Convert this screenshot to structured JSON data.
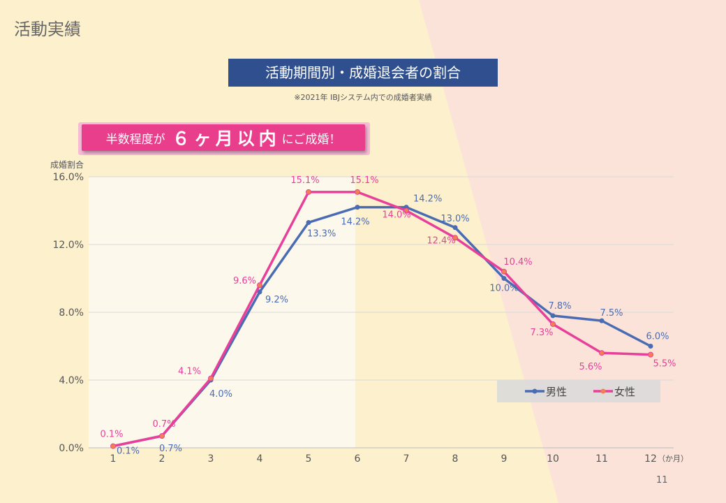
{
  "page": {
    "title": "活動実績",
    "page_number": "11",
    "colors": {
      "background_left": "#fdf0cd",
      "background_right": "#fbe3d9",
      "highlight": "#fdf8ec"
    }
  },
  "callout": {
    "text_before": "半数程度が",
    "text_emphasis": "６ヶ月以内",
    "text_after": "にご成婚！"
  },
  "chart_data": {
    "type": "line",
    "title": "活動期間別・成婚退会者の割合",
    "subtitle": "※2021年 IBJシステム内での成婚者実績",
    "ylabel": "成婚割合",
    "xunit": "（か月）",
    "categories": [
      "1",
      "2",
      "3",
      "4",
      "5",
      "6",
      "7",
      "8",
      "9",
      "10",
      "11",
      "12"
    ],
    "yticks": [
      "0.0%",
      "4.0%",
      "8.0%",
      "12.0%",
      "16.0%"
    ],
    "ylim": [
      0,
      16
    ],
    "highlight_range": [
      "1",
      "6"
    ],
    "grid": true,
    "legend": "bottom-right",
    "series": [
      {
        "name": "男性",
        "color": "#4a6cb3",
        "values": [
          0.1,
          0.7,
          4.0,
          9.2,
          13.3,
          14.2,
          14.2,
          13.0,
          10.0,
          7.8,
          7.5,
          6.0
        ],
        "labels": [
          "0.1%",
          "0.7%",
          "4.0%",
          "9.2%",
          "13.3%",
          "14.2%",
          "14.2%",
          "13.0%",
          "10.0%",
          "7.8%",
          "7.5%",
          "6.0%"
        ]
      },
      {
        "name": "女性",
        "color": "#e8409a",
        "values": [
          0.1,
          0.7,
          4.1,
          9.6,
          15.1,
          15.1,
          14.0,
          12.4,
          10.4,
          7.3,
          5.6,
          5.5
        ],
        "labels": [
          "0.1%",
          "0.7%",
          "4.1%",
          "9.6%",
          "15.1%",
          "15.1%",
          "14.0%",
          "12.4%",
          "10.4%",
          "7.3%",
          "5.6%",
          "5.5%"
        ]
      }
    ]
  }
}
